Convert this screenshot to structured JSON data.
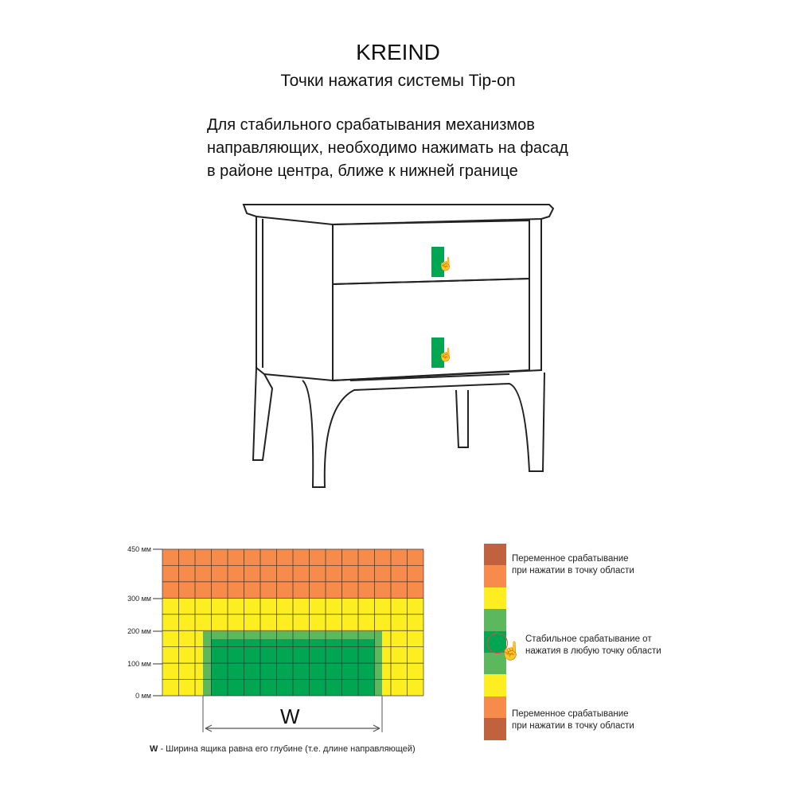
{
  "brand": "KREIND",
  "subtitle": "Точки нажатия системы Tip-on",
  "description": [
    "Для стабильного срабатывания механизмов",
    "направляющих, необходимо нажимать на фасад",
    "в районе центра, ближе к нижней границе"
  ],
  "grid": {
    "y_labels": [
      "450 мм",
      "300 мм",
      "200 мм",
      "100 мм",
      "0 мм"
    ],
    "width_label": "W",
    "colors": {
      "orange": "#f68b4c",
      "yellow": "#fcee21",
      "green_light": "#5cb85c",
      "green_dark": "#00a651",
      "brown": "#c1623e"
    }
  },
  "note": {
    "bold": "W",
    "text": " - Ширина ящика равна его глубине (т.е. длине направляющей)"
  },
  "legend": {
    "top": [
      "Переменное срабатывание",
      "при нажатии в точку области"
    ],
    "middle": [
      "Стабильное срабатывание от",
      "нажатия в любую точку области"
    ],
    "bottom": [
      "Переменное срабатывание",
      "при нажатии в точку области"
    ]
  }
}
